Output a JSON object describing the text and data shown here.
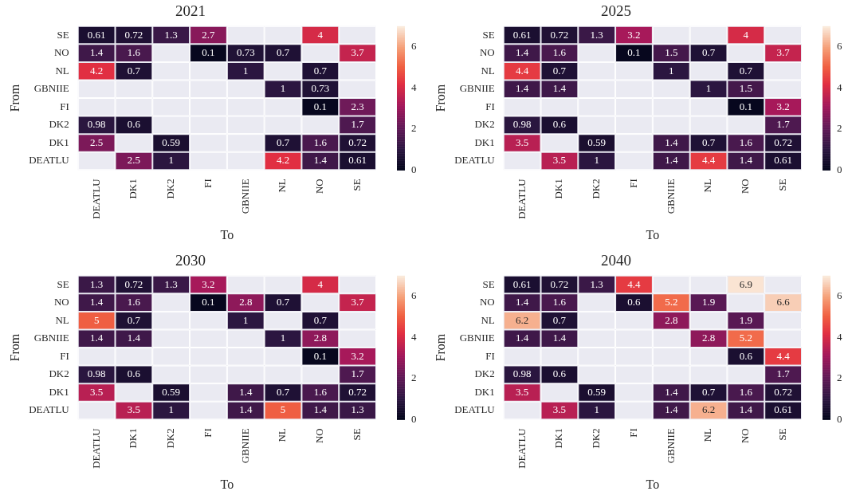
{
  "chart_data": [
    {
      "type": "heatmap",
      "title": "2021",
      "xlabel": "To",
      "ylabel": "From",
      "categories": [
        "DEATLU",
        "DK1",
        "DK2",
        "FI",
        "GBNIIE",
        "NL",
        "NO",
        "SE"
      ],
      "y_categories": [
        "SE",
        "NO",
        "NL",
        "GBNIIE",
        "FI",
        "DK2",
        "DK1",
        "DEATLU"
      ],
      "clim": [
        0,
        7
      ],
      "cticks": [
        0,
        2,
        4,
        6
      ],
      "data_labels": true,
      "cells": [
        [
          0.61,
          0.72,
          1.3,
          2.7,
          null,
          null,
          4,
          null
        ],
        [
          1.4,
          1.6,
          null,
          0.1,
          0.73,
          0.7,
          null,
          3.7
        ],
        [
          4.2,
          0.7,
          null,
          null,
          1,
          null,
          0.7,
          null
        ],
        [
          null,
          null,
          null,
          null,
          null,
          1,
          0.73,
          null
        ],
        [
          null,
          null,
          null,
          null,
          null,
          null,
          0.1,
          2.3
        ],
        [
          0.98,
          0.6,
          null,
          null,
          null,
          null,
          null,
          1.7
        ],
        [
          2.5,
          null,
          0.59,
          null,
          null,
          0.7,
          1.6,
          0.72
        ],
        [
          null,
          2.5,
          1,
          null,
          null,
          4.2,
          1.4,
          0.61
        ]
      ]
    },
    {
      "type": "heatmap",
      "title": "2025",
      "xlabel": "To",
      "ylabel": "From",
      "categories": [
        "DEATLU",
        "DK1",
        "DK2",
        "FI",
        "GBNIIE",
        "NL",
        "NO",
        "SE"
      ],
      "y_categories": [
        "SE",
        "NO",
        "NL",
        "GBNIIE",
        "FI",
        "DK2",
        "DK1",
        "DEATLU"
      ],
      "clim": [
        0,
        7
      ],
      "cticks": [
        0,
        2,
        4,
        6
      ],
      "data_labels": true,
      "cells": [
        [
          0.61,
          0.72,
          1.3,
          3.2,
          null,
          null,
          4,
          null
        ],
        [
          1.4,
          1.6,
          null,
          0.1,
          1.5,
          0.7,
          null,
          3.7
        ],
        [
          4.4,
          0.7,
          null,
          null,
          1,
          null,
          0.7,
          null
        ],
        [
          1.4,
          1.4,
          null,
          null,
          null,
          1,
          1.5,
          null
        ],
        [
          null,
          null,
          null,
          null,
          null,
          null,
          0.1,
          3.2
        ],
        [
          0.98,
          0.6,
          null,
          null,
          null,
          null,
          null,
          1.7
        ],
        [
          3.5,
          null,
          0.59,
          null,
          1.4,
          0.7,
          1.6,
          0.72
        ],
        [
          null,
          3.5,
          1,
          null,
          1.4,
          4.4,
          1.4,
          0.61
        ]
      ]
    },
    {
      "type": "heatmap",
      "title": "2030",
      "xlabel": "To",
      "ylabel": "From",
      "categories": [
        "DEATLU",
        "DK1",
        "DK2",
        "FI",
        "GBNIIE",
        "NL",
        "NO",
        "SE"
      ],
      "y_categories": [
        "SE",
        "NO",
        "NL",
        "GBNIIE",
        "FI",
        "DK2",
        "DK1",
        "DEATLU"
      ],
      "clim": [
        0,
        7
      ],
      "cticks": [
        0,
        2,
        4,
        6
      ],
      "data_labels": true,
      "cells": [
        [
          1.3,
          0.72,
          1.3,
          3.2,
          null,
          null,
          4,
          null
        ],
        [
          1.4,
          1.6,
          null,
          0.1,
          2.8,
          0.7,
          null,
          3.7
        ],
        [
          5,
          0.7,
          null,
          null,
          1,
          null,
          0.7,
          null
        ],
        [
          1.4,
          1.4,
          null,
          null,
          null,
          1,
          2.8,
          null
        ],
        [
          null,
          null,
          null,
          null,
          null,
          null,
          0.1,
          3.2
        ],
        [
          0.98,
          0.6,
          null,
          null,
          null,
          null,
          null,
          1.7
        ],
        [
          3.5,
          null,
          0.59,
          null,
          1.4,
          0.7,
          1.6,
          0.72
        ],
        [
          null,
          3.5,
          1,
          null,
          1.4,
          5,
          1.4,
          1.3
        ]
      ]
    },
    {
      "type": "heatmap",
      "title": "2040",
      "xlabel": "To",
      "ylabel": "From",
      "categories": [
        "DEATLU",
        "DK1",
        "DK2",
        "FI",
        "GBNIIE",
        "NL",
        "NO",
        "SE"
      ],
      "y_categories": [
        "SE",
        "NO",
        "NL",
        "GBNIIE",
        "FI",
        "DK2",
        "DK1",
        "DEATLU"
      ],
      "clim": [
        0,
        7
      ],
      "cticks": [
        0,
        2,
        4,
        6
      ],
      "data_labels": true,
      "cells": [
        [
          0.61,
          0.72,
          1.3,
          4.4,
          null,
          null,
          6.9,
          null
        ],
        [
          1.4,
          1.6,
          null,
          0.6,
          5.2,
          1.9,
          null,
          6.6
        ],
        [
          6.2,
          0.7,
          null,
          null,
          2.8,
          null,
          1.9,
          null
        ],
        [
          1.4,
          1.4,
          null,
          null,
          null,
          2.8,
          5.2,
          null
        ],
        [
          null,
          null,
          null,
          null,
          null,
          null,
          0.6,
          4.4
        ],
        [
          0.98,
          0.6,
          null,
          null,
          null,
          null,
          null,
          1.7
        ],
        [
          3.5,
          null,
          0.59,
          null,
          1.4,
          0.7,
          1.6,
          0.72
        ],
        [
          null,
          3.5,
          1,
          null,
          1.4,
          6.2,
          1.4,
          0.61
        ]
      ]
    }
  ]
}
